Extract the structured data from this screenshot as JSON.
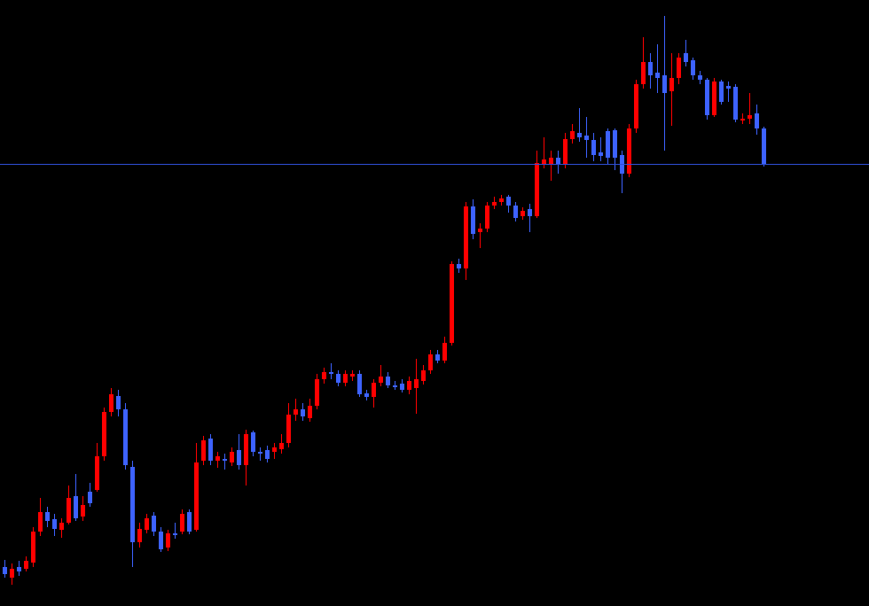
{
  "chart_data": {
    "type": "candlestick",
    "up_color": "#ff0000",
    "down_color": "#3d62ff",
    "line_color": "#2f4fd6",
    "ylim": [
      0,
      684
    ],
    "hline": 499,
    "open": [
      44,
      32,
      44,
      42,
      49,
      84,
      106,
      98,
      86,
      94,
      124,
      101,
      129,
      131,
      169,
      219,
      237,
      222,
      157,
      72,
      86,
      102,
      84,
      66,
      82,
      84,
      106,
      86,
      164,
      189,
      164,
      166,
      162,
      176,
      159,
      196,
      174,
      176,
      174,
      177,
      184,
      216,
      222,
      212,
      226,
      256,
      264,
      262,
      252,
      259,
      262,
      240,
      236,
      252,
      259,
      249,
      251,
      244,
      246,
      254,
      266,
      284,
      277,
      297,
      386,
      381,
      451,
      422,
      426,
      452,
      456,
      462,
      452,
      440,
      448,
      440,
      498,
      498,
      506,
      498,
      527,
      534,
      531,
      526,
      512,
      536,
      537,
      509,
      488,
      539,
      589,
      614,
      602,
      599,
      581,
      596,
      624,
      616,
      599,
      594,
      554,
      592,
      587,
      586,
      548,
      550,
      556,
      539
    ],
    "high": [
      52,
      48,
      51,
      56,
      89,
      122,
      112,
      104,
      99,
      136,
      149,
      124,
      139,
      184,
      224,
      246,
      244,
      229,
      164,
      94,
      104,
      106,
      89,
      86,
      94,
      109,
      109,
      184,
      192,
      194,
      174,
      172,
      179,
      194,
      199,
      198,
      179,
      181,
      184,
      194,
      229,
      234,
      229,
      234,
      262,
      269,
      274,
      266,
      266,
      266,
      266,
      244,
      256,
      272,
      264,
      254,
      256,
      259,
      279,
      272,
      289,
      289,
      304,
      389,
      392,
      456,
      459,
      432,
      456,
      462,
      464,
      464,
      456,
      450,
      454,
      514,
      529,
      514,
      514,
      534,
      544,
      562,
      552,
      534,
      529,
      539,
      539,
      514,
      544,
      594,
      642,
      624,
      634,
      666,
      624,
      624,
      639,
      619,
      604,
      596,
      596,
      594,
      592,
      589,
      556,
      579,
      566,
      541
    ],
    "low": [
      32,
      24,
      34,
      39,
      44,
      79,
      89,
      79,
      77,
      92,
      96,
      96,
      112,
      129,
      164,
      214,
      214,
      154,
      44,
      66,
      82,
      79,
      61,
      62,
      76,
      81,
      81,
      84,
      159,
      159,
      156,
      154,
      158,
      154,
      136,
      169,
      164,
      162,
      166,
      172,
      179,
      209,
      209,
      208,
      222,
      251,
      256,
      248,
      248,
      254,
      236,
      232,
      224,
      248,
      246,
      244,
      241,
      239,
      217,
      250,
      262,
      274,
      274,
      294,
      376,
      368,
      414,
      404,
      422,
      448,
      452,
      444,
      434,
      436,
      422,
      438,
      494,
      480,
      488,
      494,
      522,
      524,
      506,
      502,
      502,
      499,
      492,
      466,
      484,
      534,
      584,
      584,
      579,
      514,
      542,
      589,
      609,
      594,
      589,
      549,
      552,
      566,
      569,
      546,
      544,
      544,
      532,
      496
    ],
    "close": [
      36,
      42,
      39,
      51,
      84,
      106,
      96,
      87,
      94,
      122,
      99,
      114,
      116,
      169,
      219,
      239,
      222,
      159,
      72,
      87,
      99,
      84,
      64,
      82,
      80,
      104,
      84,
      162,
      187,
      164,
      169,
      164,
      174,
      159,
      194,
      174,
      172,
      166,
      179,
      184,
      216,
      222,
      214,
      226,
      256,
      264,
      262,
      252,
      262,
      262,
      239,
      236,
      252,
      259,
      249,
      247,
      244,
      254,
      256,
      266,
      284,
      277,
      297,
      386,
      381,
      451,
      420,
      426,
      452,
      456,
      460,
      452,
      438,
      446,
      440,
      500,
      504,
      506,
      498,
      527,
      536,
      529,
      526,
      509,
      508,
      506,
      506,
      488,
      539,
      589,
      614,
      599,
      596,
      579,
      596,
      619,
      614,
      599,
      594,
      554,
      592,
      569,
      584,
      549,
      550,
      554,
      539,
      498
    ]
  }
}
